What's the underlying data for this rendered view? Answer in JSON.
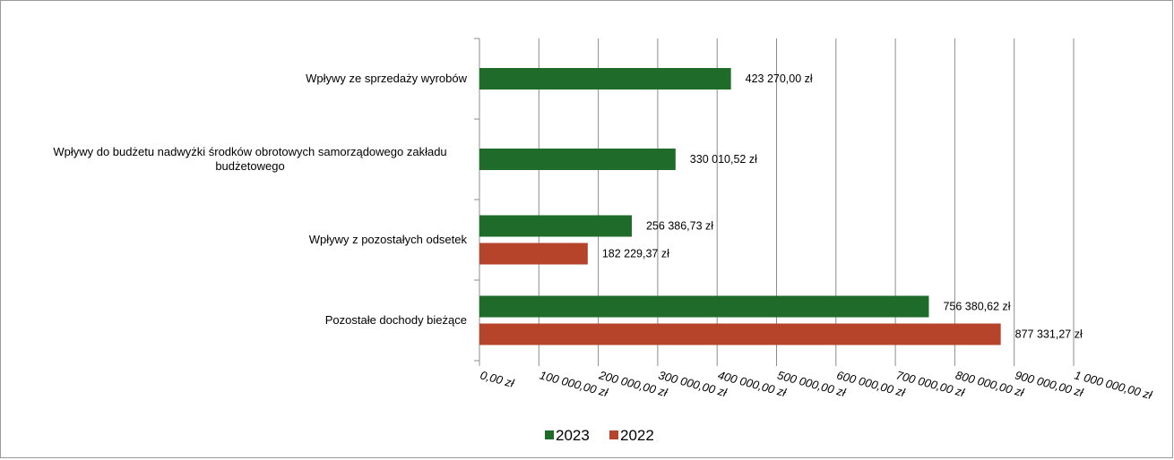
{
  "chart_data": {
    "type": "bar",
    "orientation": "horizontal",
    "categories": [
      [
        "Wpływy ze sprzedaży wyrobów"
      ],
      [
        "Wpływy do budżetu nadwyżki środków obrotowych samorządowego zakładu",
        "budżetowego"
      ],
      [
        "Wpływy z pozostałych odsetek"
      ],
      [
        "Pozostałe dochody bieżące"
      ]
    ],
    "series": [
      {
        "name": "2023",
        "color": "#1e6b2a",
        "values": [
          423270.0,
          330010.52,
          256386.73,
          756380.62
        ],
        "labels": [
          "423 270,00 zł",
          "330 010,52 zł",
          "256 386,73 zł",
          "756 380,62 zł"
        ]
      },
      {
        "name": "2022",
        "color": "#b5442a",
        "values": [
          null,
          null,
          182229.37,
          877331.27
        ],
        "labels": [
          null,
          null,
          "182 229,37 zł",
          "877 331,27 zł"
        ]
      }
    ],
    "xlim": [
      0,
      1000000
    ],
    "xticks": [
      0,
      100000,
      200000,
      300000,
      400000,
      500000,
      600000,
      700000,
      800000,
      900000,
      1000000
    ],
    "xtick_labels": [
      "0,00 zł",
      "100 000,00 zł",
      "200 000,00 zł",
      "300 000,00 zł",
      "400 000,00 zł",
      "500 000,00 zł",
      "600 000,00 zł",
      "700 000,00 zł",
      "800 000,00 zł",
      "900 000,00 zł",
      "1 000 000,00 zł"
    ],
    "grid": true,
    "legend": "bottom",
    "title": "",
    "xlabel": "",
    "ylabel": ""
  }
}
